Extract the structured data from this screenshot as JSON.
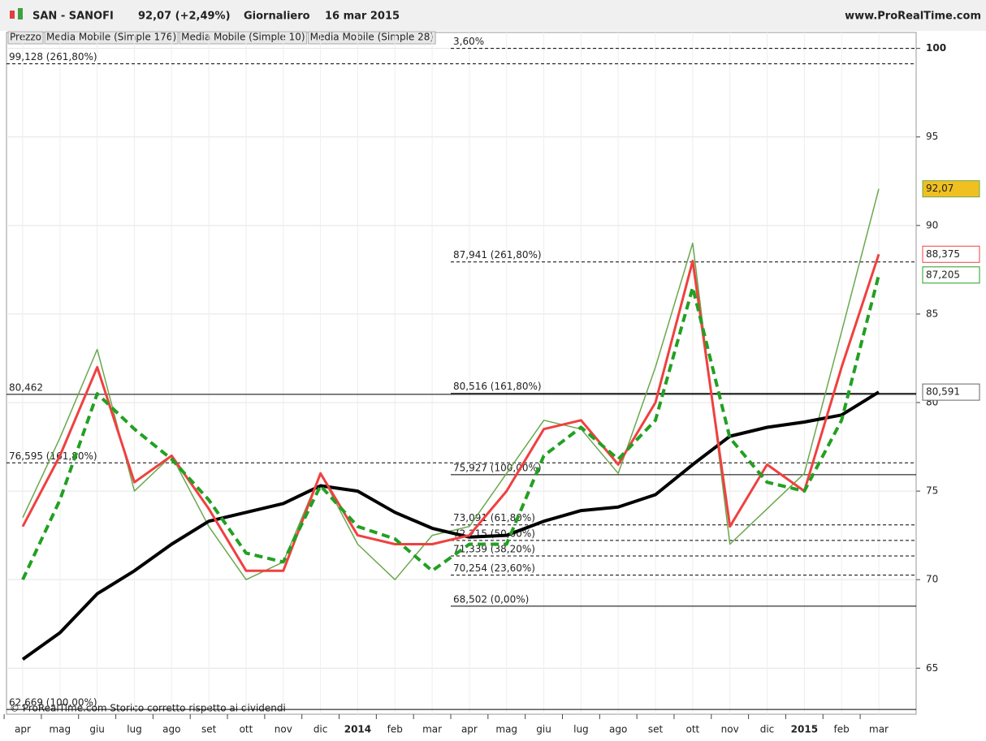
{
  "chart_data": {
    "type": "line",
    "title": "SAN - SANOFI",
    "quote": "92,07 (+2,49%)",
    "interval": "Giornaliero",
    "date": "16 mar 2015",
    "source": "www.ProRealTime.com",
    "footer": "© ProRealTime.com  Storico corretto rispetto ai dividendi",
    "categories": [
      "apr",
      "mag",
      "giu",
      "lug",
      "ago",
      "set",
      "ott",
      "nov",
      "dic",
      "2014",
      "feb",
      "mar",
      "apr",
      "mag",
      "giu",
      "lug",
      "ago",
      "set",
      "ott",
      "nov",
      "dic",
      "2015",
      "feb",
      "mar"
    ],
    "series": [
      {
        "name": "Prezzo",
        "color": "#6aa84f",
        "width": 1.5,
        "dashed": false,
        "values": [
          73.5,
          78,
          83,
          75,
          77,
          73,
          70,
          71,
          76,
          72,
          70,
          72.5,
          73,
          76,
          79,
          78.5,
          76,
          82,
          89,
          72,
          74,
          76,
          84,
          92.07
        ],
        "last_label": "92,07",
        "label_color": "#f0c020"
      },
      {
        "name": "Media Mobile (Simple 176)",
        "color": "#000000",
        "width": 4,
        "dashed": false,
        "values": [
          65.5,
          67,
          69.2,
          70.5,
          72,
          73.3,
          73.8,
          74.3,
          75.3,
          75,
          73.8,
          72.9,
          72.4,
          72.5,
          73.3,
          73.9,
          74.1,
          74.8,
          76.5,
          78.1,
          78.6,
          78.9,
          79.3,
          80.591
        ],
        "last_label": "80,591",
        "label_color": "#ffffff"
      },
      {
        "name": "Media Mobile (Simple 10)",
        "color": "#f04040",
        "width": 3,
        "dashed": false,
        "values": [
          73,
          77,
          82,
          75.5,
          77,
          74,
          70.5,
          70.5,
          76,
          72.5,
          72,
          72,
          72.5,
          75,
          78.5,
          79,
          76.5,
          80,
          88,
          73,
          76.5,
          75,
          82,
          88.375
        ],
        "last_label": "88,375",
        "label_color": "#ffffff"
      },
      {
        "name": "Media Mobile (Simple 28)",
        "color": "#22a022",
        "width": 4,
        "dashed": true,
        "values": [
          70,
          74.5,
          80.5,
          78.5,
          76.8,
          74.5,
          71.5,
          71,
          75.3,
          73,
          72.3,
          70.5,
          72,
          72,
          77,
          78.6,
          76.8,
          79,
          86.5,
          78,
          75.5,
          75,
          79,
          87.205
        ],
        "last_label": "87,205",
        "label_color": "#ffffff"
      }
    ],
    "levels_full": [
      {
        "value": 99.128,
        "label": "99,128 (261,80%)",
        "dashed": true
      },
      {
        "value": 80.462,
        "label": "80,462",
        "dashed": false
      },
      {
        "value": 76.595,
        "label": "76,595 (161,80%)",
        "dashed": true
      },
      {
        "value": 62.669,
        "label": "62,669 (100,00%)",
        "dashed": false
      }
    ],
    "levels_recent": [
      {
        "value": 100,
        "label": "3,60%",
        "dashed": true
      },
      {
        "value": 87.941,
        "label": "87,941 (261,80%)",
        "dashed": true
      },
      {
        "value": 80.516,
        "label": "80,516 (161,80%)",
        "dashed": false
      },
      {
        "value": 75.927,
        "label": "75,927 (100,00%)",
        "dashed": false
      },
      {
        "value": 73.091,
        "label": "73,091 (61,80%)",
        "dashed": true
      },
      {
        "value": 72.215,
        "label": "72,215 (50,00%)",
        "dashed": true
      },
      {
        "value": 71.339,
        "label": "71,339 (38,20%)",
        "dashed": true
      },
      {
        "value": 70.254,
        "label": "70,254 (23,60%)",
        "dashed": true
      },
      {
        "value": 68.502,
        "label": "68,502 (0,00%)",
        "dashed": false
      }
    ],
    "ylim": [
      62.4,
      100.9
    ],
    "yticks": [
      65,
      70,
      75,
      80,
      85,
      90,
      95,
      100
    ],
    "grid": true
  }
}
